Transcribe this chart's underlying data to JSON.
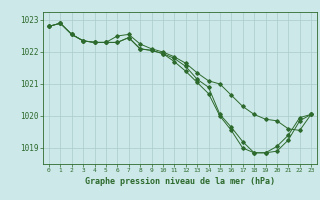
{
  "x": [
    0,
    1,
    2,
    3,
    4,
    5,
    6,
    7,
    8,
    9,
    10,
    11,
    12,
    13,
    14,
    15,
    16,
    17,
    18,
    19,
    20,
    21,
    22,
    23
  ],
  "line1": [
    1022.8,
    1022.9,
    1022.55,
    1022.35,
    1022.3,
    1022.3,
    1022.3,
    1022.45,
    1022.1,
    1022.05,
    1021.95,
    1021.8,
    1021.55,
    1021.15,
    1020.9,
    1020.05,
    1019.65,
    1019.2,
    1018.85,
    1018.85,
    1019.05,
    1019.4,
    1019.95,
    1020.05
  ],
  "line2": [
    1022.8,
    1022.9,
    1022.55,
    1022.35,
    1022.3,
    1022.3,
    1022.5,
    1022.55,
    1022.25,
    1022.1,
    1022.0,
    1021.85,
    1021.65,
    1021.35,
    1021.1,
    1021.0,
    1020.65,
    1020.3,
    1020.05,
    1019.9,
    1019.85,
    1019.6,
    1019.55,
    1020.05
  ],
  "line3": [
    1022.8,
    1022.9,
    1022.55,
    1022.35,
    1022.3,
    1022.3,
    1022.3,
    1022.45,
    1022.1,
    1022.05,
    1021.95,
    1021.7,
    1021.4,
    1021.05,
    1020.7,
    1020.0,
    1019.55,
    1019.0,
    1018.85,
    1018.85,
    1018.9,
    1019.25,
    1019.85,
    1020.05
  ],
  "line_color": "#2d6a2d",
  "bg_color": "#cce8e8",
  "grid_color": "#aacccc",
  "xlabel": "Graphe pression niveau de la mer (hPa)",
  "xlabel_color": "#2d6a2d",
  "tick_color": "#2d6a2d",
  "ylim": [
    1018.5,
    1023.25
  ],
  "yticks": [
    1019,
    1020,
    1021,
    1022,
    1023
  ],
  "xticks": [
    0,
    1,
    2,
    3,
    4,
    5,
    6,
    7,
    8,
    9,
    10,
    11,
    12,
    13,
    14,
    15,
    16,
    17,
    18,
    19,
    20,
    21,
    22,
    23
  ]
}
